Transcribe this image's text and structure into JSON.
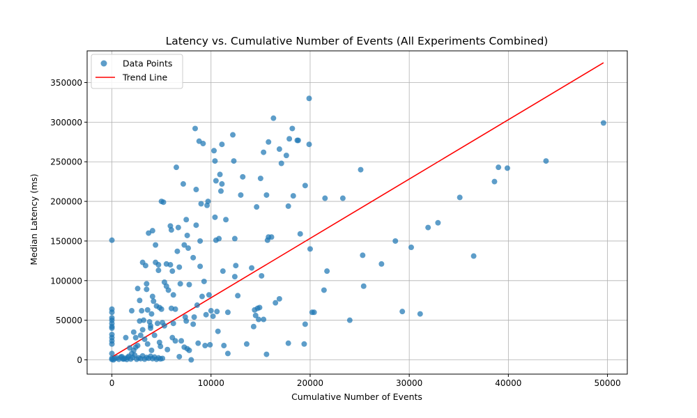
{
  "chart_data": {
    "type": "scatter",
    "title": "Latency vs. Cumulative Number of Events (All Experiments Combined)",
    "xlabel": "Cumulative Number of Events",
    "ylabel": "Median Latency (ms)",
    "xlim": [
      -2500,
      52000
    ],
    "ylim": [
      -18000,
      390000
    ],
    "xticks": [
      0,
      10000,
      20000,
      30000,
      40000,
      50000
    ],
    "yticks": [
      0,
      50000,
      100000,
      150000,
      200000,
      250000,
      300000,
      350000
    ],
    "grid": true,
    "legend_position": "top-left",
    "colors": {
      "points": "#1f77b4",
      "trend": "#ff0000",
      "grid": "#b0b0b0"
    },
    "series": [
      {
        "name": "Data Points",
        "kind": "scatter",
        "points": [
          [
            0,
            151000
          ],
          [
            0,
            64000
          ],
          [
            0,
            60000
          ],
          [
            0,
            53000
          ],
          [
            0,
            50000
          ],
          [
            0,
            46000
          ],
          [
            0,
            42000
          ],
          [
            0,
            40000
          ],
          [
            0,
            32000
          ],
          [
            0,
            28000
          ],
          [
            0,
            24000
          ],
          [
            0,
            20000
          ],
          [
            0,
            8000
          ],
          [
            0,
            2000
          ],
          [
            0,
            500
          ],
          [
            150,
            0
          ],
          [
            300,
            1500
          ],
          [
            500,
            2500
          ],
          [
            700,
            800
          ],
          [
            900,
            3500
          ],
          [
            1100,
            1200
          ],
          [
            1300,
            2000
          ],
          [
            1500,
            500
          ],
          [
            1700,
            4500
          ],
          [
            1900,
            1000
          ],
          [
            2100,
            3000
          ],
          [
            2300,
            6000
          ],
          [
            2500,
            800
          ],
          [
            2700,
            2500
          ],
          [
            2900,
            1500
          ],
          [
            3100,
            5000
          ],
          [
            3300,
            900
          ],
          [
            3500,
            3000
          ],
          [
            3700,
            2000
          ],
          [
            3900,
            4500
          ],
          [
            4100,
            1500
          ],
          [
            4300,
            3500
          ],
          [
            4500,
            700
          ],
          [
            4700,
            2500
          ],
          [
            4900,
            1200
          ],
          [
            5100,
            1800
          ],
          [
            1000,
            4000
          ],
          [
            1200,
            1000
          ],
          [
            1400,
            28000
          ],
          [
            1600,
            3000
          ],
          [
            1800,
            15000
          ],
          [
            2000,
            62000
          ],
          [
            2000,
            8000
          ],
          [
            2200,
            35000
          ],
          [
            2200,
            12000
          ],
          [
            2400,
            28000
          ],
          [
            2400,
            16000
          ],
          [
            2600,
            90000
          ],
          [
            2600,
            18000
          ],
          [
            2800,
            49000
          ],
          [
            2800,
            75000
          ],
          [
            2900,
            31000
          ],
          [
            3000,
            62000
          ],
          [
            3100,
            123000
          ],
          [
            3100,
            38000
          ],
          [
            3200,
            50000
          ],
          [
            3300,
            26000
          ],
          [
            3400,
            119000
          ],
          [
            3500,
            96000
          ],
          [
            3500,
            89000
          ],
          [
            3600,
            63000
          ],
          [
            3600,
            20000
          ],
          [
            3700,
            160000
          ],
          [
            3800,
            48000
          ],
          [
            3900,
            43000
          ],
          [
            3900,
            40000
          ],
          [
            4000,
            58000
          ],
          [
            4000,
            12000
          ],
          [
            4100,
            163000
          ],
          [
            4100,
            80000
          ],
          [
            4200,
            74000
          ],
          [
            4300,
            31000
          ],
          [
            4400,
            145000
          ],
          [
            4400,
            123000
          ],
          [
            4500,
            68000
          ],
          [
            4600,
            46000
          ],
          [
            4700,
            113000
          ],
          [
            4700,
            120000
          ],
          [
            4800,
            66000
          ],
          [
            4800,
            22000
          ],
          [
            4900,
            17000
          ],
          [
            5000,
            200000
          ],
          [
            5000,
            64000
          ],
          [
            5100,
            47000
          ],
          [
            5200,
            199000
          ],
          [
            5300,
            98000
          ],
          [
            5300,
            43000
          ],
          [
            5500,
            121000
          ],
          [
            5500,
            93000
          ],
          [
            5600,
            13000
          ],
          [
            5700,
            88000
          ],
          [
            5900,
            169000
          ],
          [
            5900,
            120000
          ],
          [
            6000,
            164000
          ],
          [
            6000,
            65000
          ],
          [
            6100,
            28000
          ],
          [
            6100,
            112000
          ],
          [
            6200,
            82000
          ],
          [
            6200,
            46000
          ],
          [
            6400,
            64000
          ],
          [
            6400,
            24000
          ],
          [
            6500,
            243000
          ],
          [
            6600,
            137000
          ],
          [
            6700,
            167000
          ],
          [
            6800,
            117000
          ],
          [
            6800,
            4000
          ],
          [
            6900,
            96000
          ],
          [
            7000,
            24000
          ],
          [
            7200,
            222000
          ],
          [
            7300,
            145000
          ],
          [
            7300,
            16000
          ],
          [
            7400,
            54000
          ],
          [
            7500,
            49000
          ],
          [
            7500,
            177000
          ],
          [
            7600,
            157000
          ],
          [
            7600,
            14000
          ],
          [
            7700,
            141000
          ],
          [
            7800,
            95000
          ],
          [
            7800,
            12000
          ],
          [
            8000,
            0
          ],
          [
            8200,
            129000
          ],
          [
            8200,
            45000
          ],
          [
            8300,
            54000
          ],
          [
            8400,
            292000
          ],
          [
            8500,
            215000
          ],
          [
            8500,
            170000
          ],
          [
            8600,
            69000
          ],
          [
            8700,
            21000
          ],
          [
            8800,
            276000
          ],
          [
            8900,
            150000
          ],
          [
            8900,
            118000
          ],
          [
            9000,
            197000
          ],
          [
            9100,
            80000
          ],
          [
            9200,
            273000
          ],
          [
            9300,
            99000
          ],
          [
            9400,
            18000
          ],
          [
            9500,
            57000
          ],
          [
            9600,
            195000
          ],
          [
            9700,
            200000
          ],
          [
            9800,
            82000
          ],
          [
            9900,
            19000
          ],
          [
            10000,
            62000
          ],
          [
            10200,
            55000
          ],
          [
            10300,
            264000
          ],
          [
            10400,
            251000
          ],
          [
            10400,
            180000
          ],
          [
            10500,
            226000
          ],
          [
            10500,
            151000
          ],
          [
            10600,
            61000
          ],
          [
            10700,
            36000
          ],
          [
            10800,
            153000
          ],
          [
            10900,
            234000
          ],
          [
            11000,
            213000
          ],
          [
            11100,
            272000
          ],
          [
            11100,
            222000
          ],
          [
            11200,
            112000
          ],
          [
            11300,
            18000
          ],
          [
            11500,
            177000
          ],
          [
            11700,
            60000
          ],
          [
            11700,
            8000
          ],
          [
            12200,
            284000
          ],
          [
            12300,
            251000
          ],
          [
            12400,
            153000
          ],
          [
            12400,
            105000
          ],
          [
            12500,
            119000
          ],
          [
            12700,
            81000
          ],
          [
            13000,
            208000
          ],
          [
            13200,
            231000
          ],
          [
            13600,
            20000
          ],
          [
            14100,
            116000
          ],
          [
            14300,
            42000
          ],
          [
            14400,
            63000
          ],
          [
            14500,
            56000
          ],
          [
            14600,
            193000
          ],
          [
            14700,
            65000
          ],
          [
            14800,
            51000
          ],
          [
            14900,
            66000
          ],
          [
            15000,
            229000
          ],
          [
            15100,
            106000
          ],
          [
            15300,
            51000
          ],
          [
            15300,
            262000
          ],
          [
            15600,
            7000
          ],
          [
            15600,
            208000
          ],
          [
            15700,
            151000
          ],
          [
            15800,
            275000
          ],
          [
            15800,
            155000
          ],
          [
            16100,
            155000
          ],
          [
            16300,
            305000
          ],
          [
            16500,
            72000
          ],
          [
            16900,
            77000
          ],
          [
            16900,
            266000
          ],
          [
            17100,
            248000
          ],
          [
            17600,
            258000
          ],
          [
            17800,
            21000
          ],
          [
            17800,
            194000
          ],
          [
            17900,
            279000
          ],
          [
            18200,
            292000
          ],
          [
            18300,
            207000
          ],
          [
            18700,
            277000
          ],
          [
            18800,
            277000
          ],
          [
            19000,
            159000
          ],
          [
            19400,
            20000
          ],
          [
            19500,
            220000
          ],
          [
            19500,
            45000
          ],
          [
            19900,
            330000
          ],
          [
            19900,
            272000
          ],
          [
            20000,
            140000
          ],
          [
            20200,
            60000
          ],
          [
            20400,
            60000
          ],
          [
            21400,
            88000
          ],
          [
            21500,
            204000
          ],
          [
            21700,
            112000
          ],
          [
            23300,
            204000
          ],
          [
            24000,
            50000
          ],
          [
            25100,
            240000
          ],
          [
            25300,
            132000
          ],
          [
            25400,
            93000
          ],
          [
            27200,
            121000
          ],
          [
            28600,
            150000
          ],
          [
            29300,
            61000
          ],
          [
            30200,
            142000
          ],
          [
            31100,
            58000
          ],
          [
            31900,
            167000
          ],
          [
            32900,
            173000
          ],
          [
            35100,
            205000
          ],
          [
            36500,
            131000
          ],
          [
            38600,
            225000
          ],
          [
            39000,
            243000
          ],
          [
            39900,
            242000
          ],
          [
            43800,
            251000
          ],
          [
            49600,
            299000
          ]
        ]
      },
      {
        "name": "Trend Line",
        "kind": "line",
        "points": [
          [
            0,
            3500
          ],
          [
            49600,
            375000
          ]
        ]
      }
    ]
  }
}
